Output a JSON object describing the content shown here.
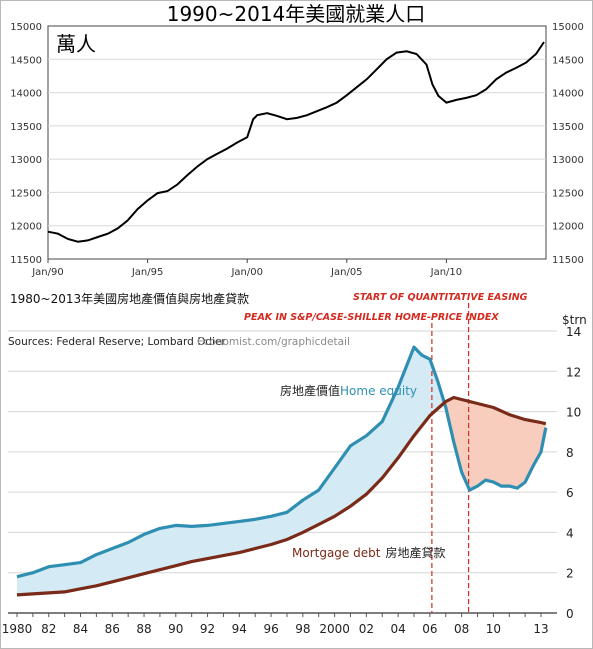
{
  "chart_data": [
    {
      "type": "line",
      "title": "1990~2014年美國就業人口",
      "unit_label": "萬人",
      "x_ticks": [
        "Jan/90",
        "Jan/95",
        "Jan/00",
        "Jan/05",
        "Jan/10"
      ],
      "y_ticks": [
        "11500",
        "12000",
        "12500",
        "13000",
        "13500",
        "14000",
        "14500",
        "15000"
      ],
      "xlim": [
        1990.0,
        2015.0
      ],
      "ylim": [
        11500,
        15000
      ],
      "grid": "horizontal",
      "series": [
        {
          "values": [
            [
              1990.0,
              11910
            ],
            [
              1990.5,
              11880
            ],
            [
              1991.0,
              11800
            ],
            [
              1991.5,
              11760
            ],
            [
              1992.0,
              11780
            ],
            [
              1992.5,
              11830
            ],
            [
              1993.0,
              11880
            ],
            [
              1993.5,
              11960
            ],
            [
              1994.0,
              12080
            ],
            [
              1994.5,
              12250
            ],
            [
              1995.0,
              12380
            ],
            [
              1995.5,
              12490
            ],
            [
              1996.0,
              12520
            ],
            [
              1996.5,
              12620
            ],
            [
              1997.0,
              12760
            ],
            [
              1997.5,
              12890
            ],
            [
              1998.0,
              13000
            ],
            [
              1998.5,
              13080
            ],
            [
              1999.0,
              13160
            ],
            [
              1999.5,
              13250
            ],
            [
              2000.0,
              13330
            ],
            [
              2000.3,
              13600
            ],
            [
              2000.5,
              13660
            ],
            [
              2001.0,
              13690
            ],
            [
              2001.5,
              13650
            ],
            [
              2002.0,
              13600
            ],
            [
              2002.5,
              13620
            ],
            [
              2003.0,
              13660
            ],
            [
              2003.5,
              13720
            ],
            [
              2004.0,
              13780
            ],
            [
              2004.5,
              13850
            ],
            [
              2005.0,
              13960
            ],
            [
              2005.5,
              14080
            ],
            [
              2006.0,
              14200
            ],
            [
              2006.5,
              14350
            ],
            [
              2007.0,
              14500
            ],
            [
              2007.5,
              14600
            ],
            [
              2008.0,
              14620
            ],
            [
              2008.5,
              14580
            ],
            [
              2009.0,
              14420
            ],
            [
              2009.3,
              14120
            ],
            [
              2009.6,
              13950
            ],
            [
              2010.0,
              13850
            ],
            [
              2010.5,
              13890
            ],
            [
              2011.0,
              13920
            ],
            [
              2011.5,
              13960
            ],
            [
              2012.0,
              14050
            ],
            [
              2012.5,
              14200
            ],
            [
              2013.0,
              14300
            ],
            [
              2013.5,
              14370
            ],
            [
              2014.0,
              14450
            ],
            [
              2014.5,
              14580
            ],
            [
              2014.9,
              14760
            ]
          ]
        }
      ]
    },
    {
      "type": "area",
      "title": "1980~2013年美國房地產價值與房地產貸款",
      "source": "Sources: Federal Reserve; Lombard Odier",
      "credit": "Economist.com/graphicdetail",
      "ylabel": "$trn",
      "x_ticks": [
        "1980",
        "82",
        "84",
        "86",
        "88",
        "90",
        "92",
        "94",
        "96",
        "98",
        "2000",
        "02",
        "04",
        "06",
        "08",
        "10",
        "13"
      ],
      "x_tick_years": [
        1980,
        1982,
        1984,
        1986,
        1988,
        1990,
        1992,
        1994,
        1996,
        1998,
        2000,
        2002,
        2004,
        2006,
        2008,
        2010,
        2013
      ],
      "y_ticks": [
        "0",
        "2",
        "4",
        "6",
        "8",
        "10",
        "12",
        "14"
      ],
      "xlim": [
        1979.5,
        2014.0
      ],
      "ylim": [
        0,
        14
      ],
      "grid": "horizontal",
      "annotations": [
        {
          "text": "START OF QUANTITATIVE EASING",
          "x": 2008.5
        },
        {
          "text": "PEAK IN S&P/CASE-SHILLER HOME-PRICE INDEX",
          "x": 2006.0
        }
      ],
      "series": [
        {
          "name": "房地產價值",
          "name_en": "Home equity",
          "color": "#2f8fb2",
          "values": [
            [
              1980.0,
              1.8
            ],
            [
              1981.0,
              2.0
            ],
            [
              1982.0,
              2.3
            ],
            [
              1983.0,
              2.4
            ],
            [
              1984.0,
              2.5
            ],
            [
              1985.0,
              2.9
            ],
            [
              1986.0,
              3.2
            ],
            [
              1987.0,
              3.5
            ],
            [
              1988.0,
              3.9
            ],
            [
              1989.0,
              4.2
            ],
            [
              1990.0,
              4.35
            ],
            [
              1991.0,
              4.3
            ],
            [
              1992.0,
              4.35
            ],
            [
              1993.0,
              4.45
            ],
            [
              1994.0,
              4.55
            ],
            [
              1995.0,
              4.65
            ],
            [
              1996.0,
              4.8
            ],
            [
              1997.0,
              5.0
            ],
            [
              1998.0,
              5.6
            ],
            [
              1999.0,
              6.1
            ],
            [
              2000.0,
              7.2
            ],
            [
              2001.0,
              8.3
            ],
            [
              2002.0,
              8.8
            ],
            [
              2003.0,
              9.5
            ],
            [
              2004.0,
              11.2
            ],
            [
              2005.0,
              13.2
            ],
            [
              2005.5,
              12.8
            ],
            [
              2006.0,
              12.6
            ],
            [
              2006.5,
              11.5
            ],
            [
              2007.0,
              10.2
            ],
            [
              2007.5,
              8.5
            ],
            [
              2008.0,
              7.0
            ],
            [
              2008.5,
              6.1
            ],
            [
              2009.0,
              6.3
            ],
            [
              2009.5,
              6.6
            ],
            [
              2010.0,
              6.5
            ],
            [
              2010.5,
              6.3
            ],
            [
              2011.0,
              6.3
            ],
            [
              2011.5,
              6.2
            ],
            [
              2012.0,
              6.5
            ],
            [
              2012.5,
              7.3
            ],
            [
              2013.0,
              8.0
            ],
            [
              2013.3,
              9.2
            ]
          ]
        },
        {
          "name": "房地產貸款",
          "name_en": "Mortgage debt",
          "color": "#7a2a18",
          "values": [
            [
              1980.0,
              0.9
            ],
            [
              1981.0,
              0.95
            ],
            [
              1982.0,
              1.0
            ],
            [
              1983.0,
              1.05
            ],
            [
              1984.0,
              1.2
            ],
            [
              1985.0,
              1.35
            ],
            [
              1986.0,
              1.55
            ],
            [
              1987.0,
              1.75
            ],
            [
              1988.0,
              1.95
            ],
            [
              1989.0,
              2.15
            ],
            [
              1990.0,
              2.35
            ],
            [
              1991.0,
              2.55
            ],
            [
              1992.0,
              2.7
            ],
            [
              1993.0,
              2.85
            ],
            [
              1994.0,
              3.0
            ],
            [
              1995.0,
              3.2
            ],
            [
              1996.0,
              3.4
            ],
            [
              1997.0,
              3.65
            ],
            [
              1998.0,
              4.0
            ],
            [
              1999.0,
              4.4
            ],
            [
              2000.0,
              4.8
            ],
            [
              2001.0,
              5.3
            ],
            [
              2002.0,
              5.9
            ],
            [
              2003.0,
              6.7
            ],
            [
              2004.0,
              7.7
            ],
            [
              2005.0,
              8.8
            ],
            [
              2006.0,
              9.8
            ],
            [
              2007.0,
              10.5
            ],
            [
              2007.5,
              10.7
            ],
            [
              2008.0,
              10.6
            ],
            [
              2009.0,
              10.4
            ],
            [
              2010.0,
              10.2
            ],
            [
              2011.0,
              9.85
            ],
            [
              2012.0,
              9.6
            ],
            [
              2013.0,
              9.45
            ],
            [
              2013.3,
              9.4
            ]
          ]
        }
      ]
    }
  ]
}
